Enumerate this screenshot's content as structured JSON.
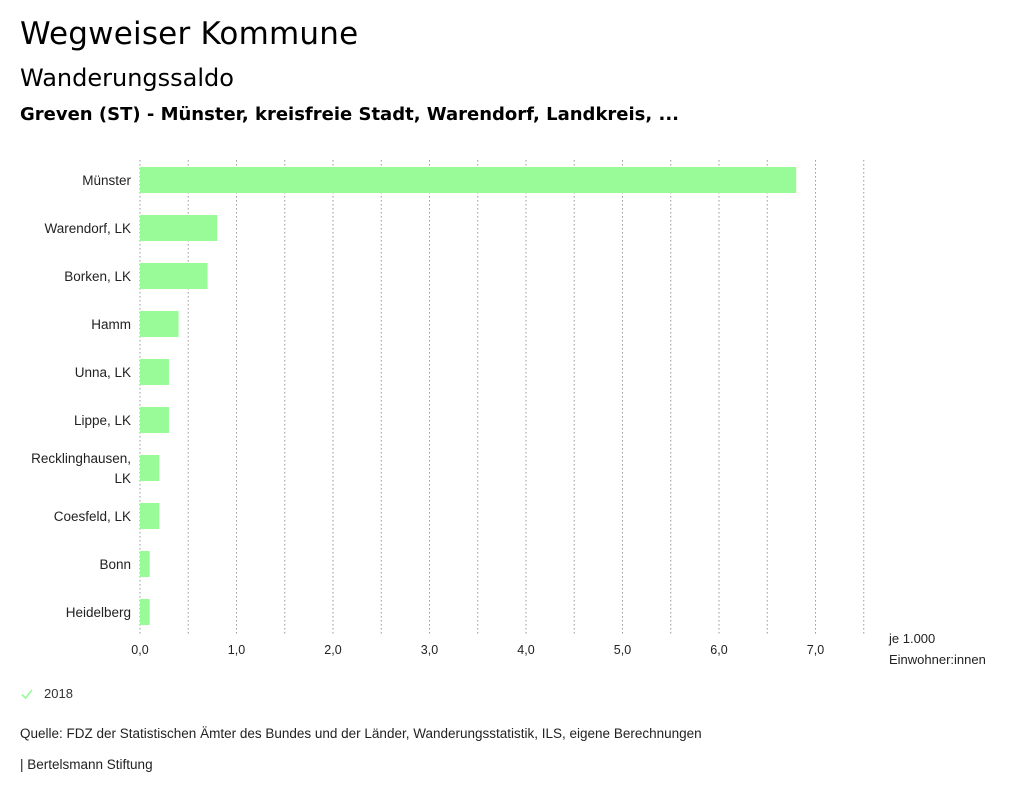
{
  "header": {
    "title": "Wegweiser Kommune",
    "subtitle": "Wanderungssaldo",
    "region": "Greven (ST) - Münster, kreisfreie Stadt, Warendorf, Landkreis, ..."
  },
  "chart_data": {
    "type": "bar",
    "orientation": "horizontal",
    "categories": [
      [
        "Münster"
      ],
      [
        "Warendorf, LK"
      ],
      [
        "Borken, LK"
      ],
      [
        "Hamm"
      ],
      [
        "Unna, LK"
      ],
      [
        "Lippe, LK"
      ],
      [
        "Recklinghausen,",
        "LK"
      ],
      [
        "Coesfeld, LK"
      ],
      [
        "Bonn"
      ],
      [
        "Heidelberg"
      ]
    ],
    "series": [
      {
        "name": "2018",
        "color": "#98fb98",
        "values": [
          6.8,
          0.8,
          0.7,
          0.4,
          0.3,
          0.3,
          0.2,
          0.2,
          0.1,
          0.1
        ]
      }
    ],
    "xlim": [
      0,
      7.5
    ],
    "x_ticks": [
      {
        "v": 0,
        "label": "0,0"
      },
      {
        "v": 1,
        "label": "1,0"
      },
      {
        "v": 2,
        "label": "2,0"
      },
      {
        "v": 3,
        "label": "3,0"
      },
      {
        "v": 4,
        "label": "4,0"
      },
      {
        "v": 5,
        "label": "5,0"
      },
      {
        "v": 6,
        "label": "6,0"
      },
      {
        "v": 7,
        "label": "7,0"
      }
    ],
    "grid_minor_step": 0.5,
    "unit_label": [
      "je 1.000",
      "Einwohner:innen"
    ],
    "grid": true,
    "legend_position": "bottom-left"
  },
  "legend": {
    "label": "2018",
    "color": "#98fb98"
  },
  "footer": {
    "source": "Quelle: FDZ der Statistischen Ämter des Bundes und der Länder, Wanderungsstatistik, ILS, eigene Berechnungen",
    "publisher": "| Bertelsmann Stiftung"
  }
}
